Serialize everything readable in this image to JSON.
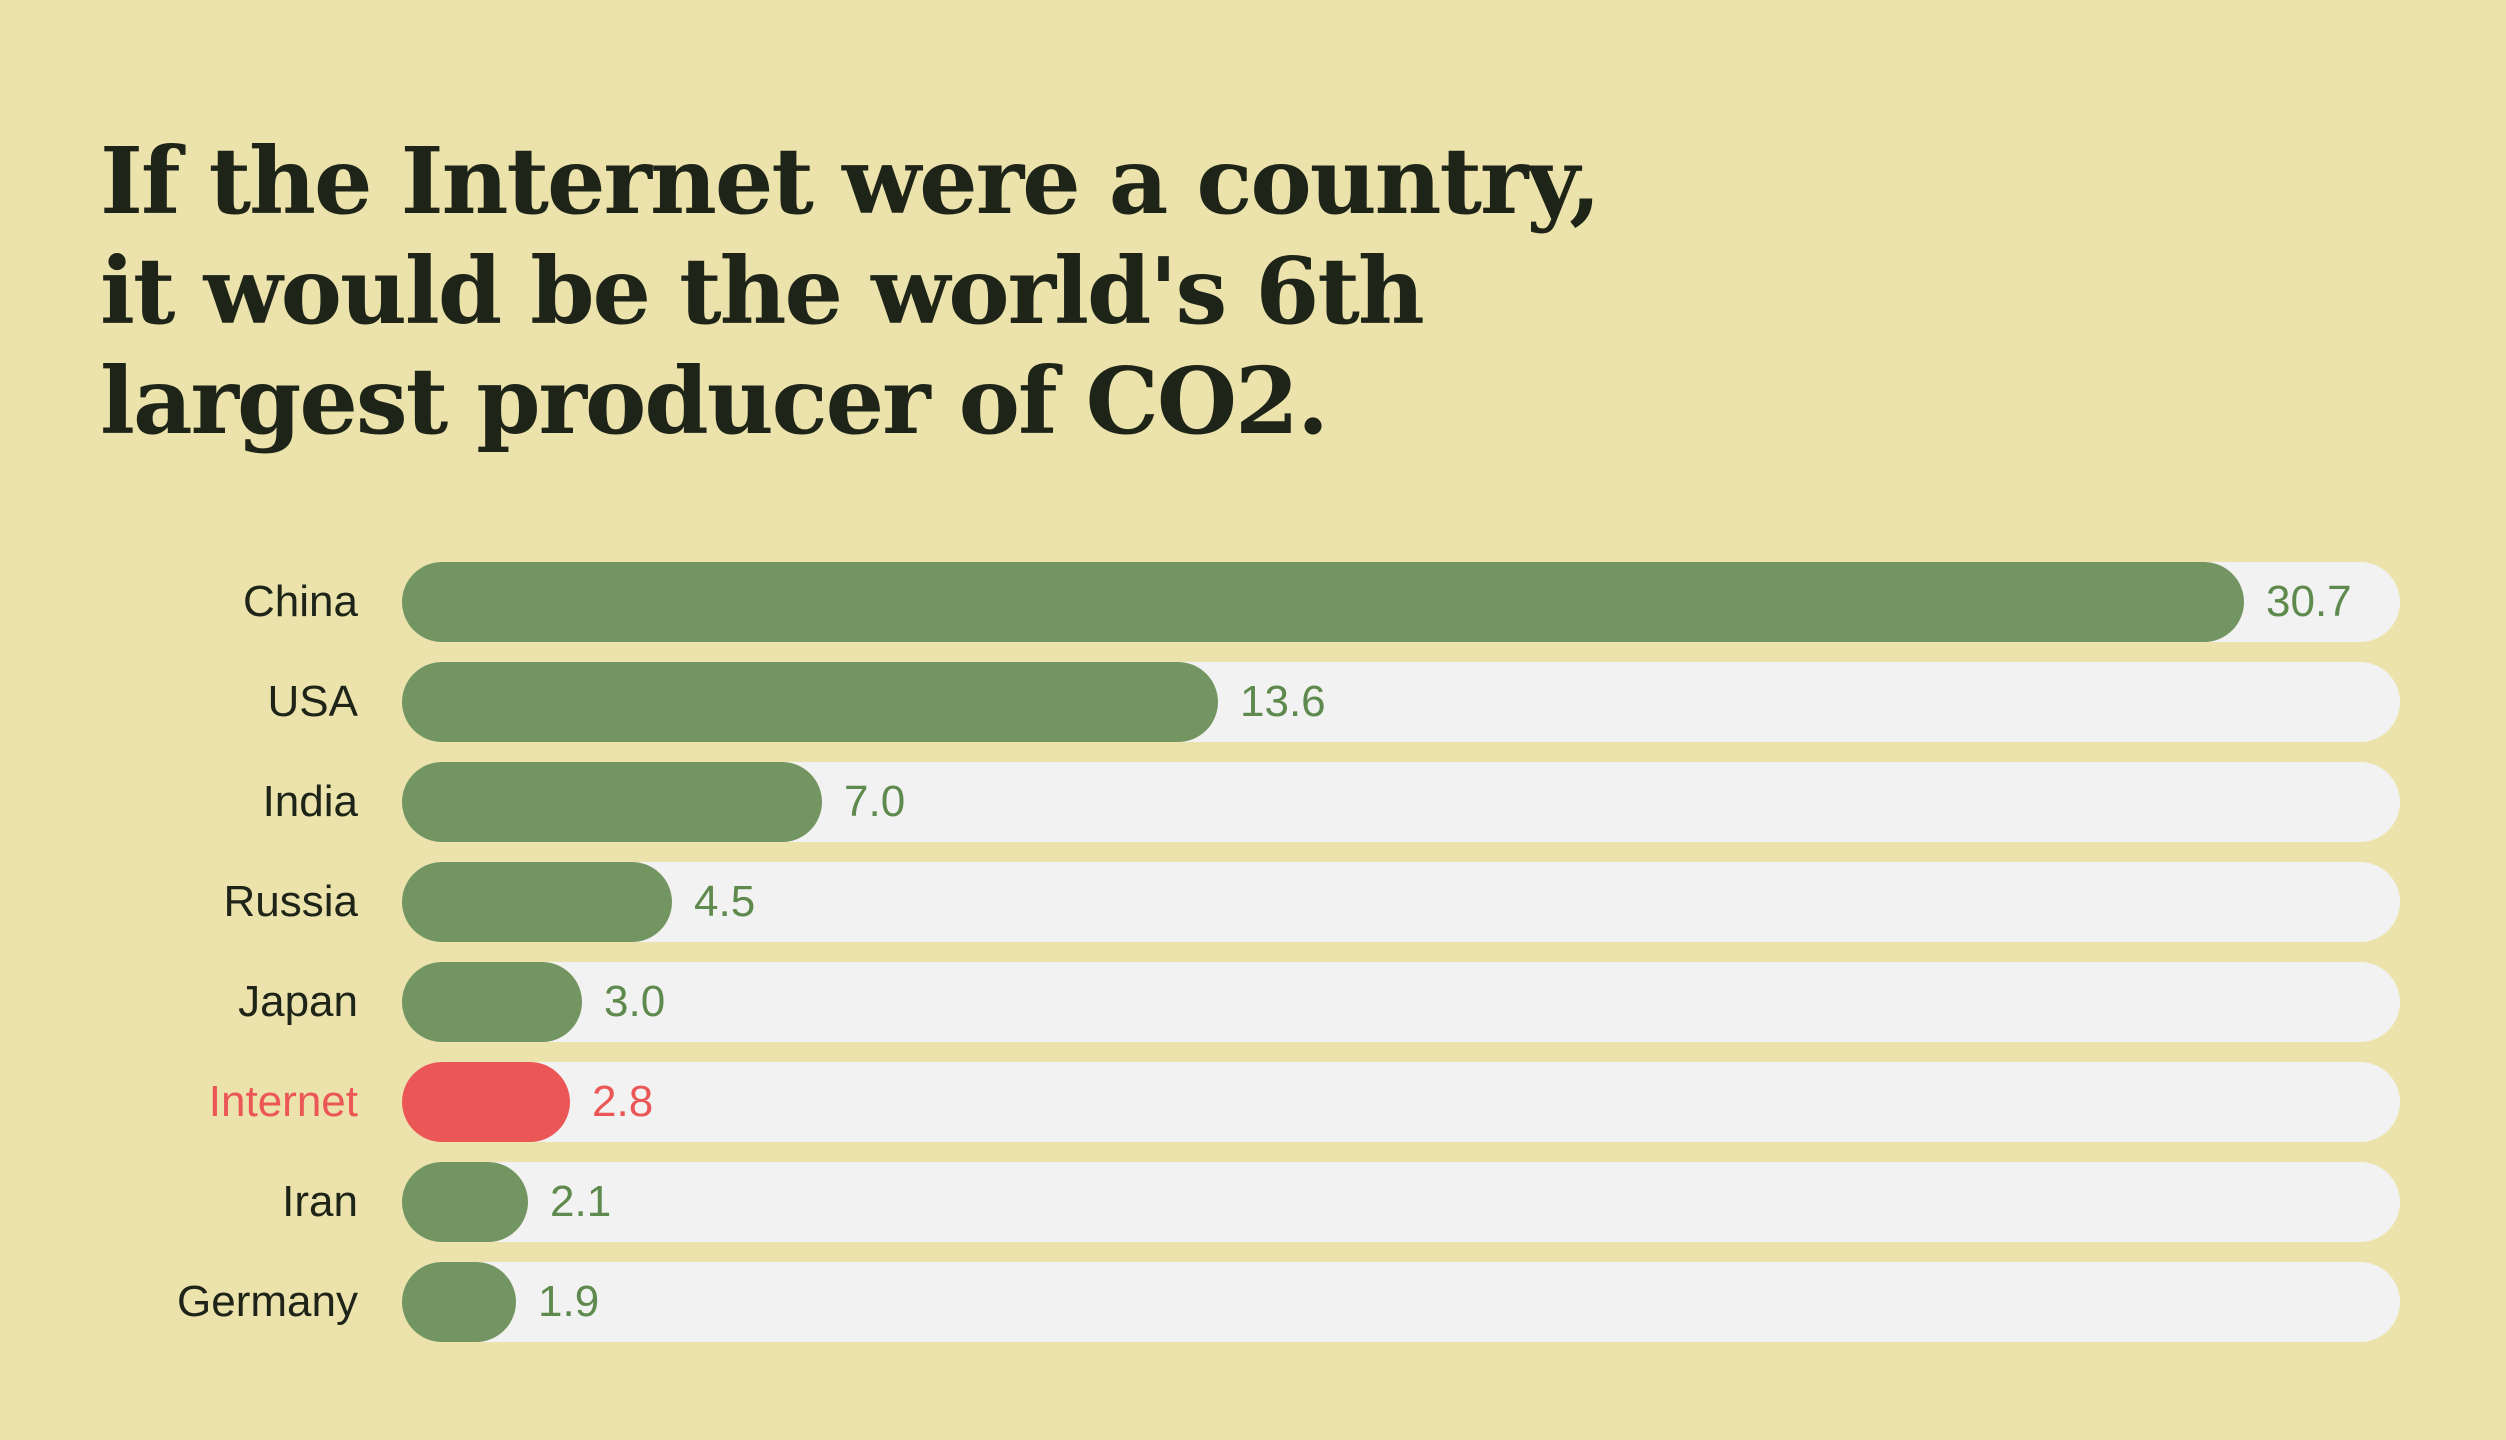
{
  "chart_data": {
    "type": "bar",
    "orientation": "horizontal",
    "title": "If the Internet were a country, it would be the world's 6th largest producer of CO2.",
    "categories": [
      "China",
      "USA",
      "India",
      "Russia",
      "Japan",
      "Internet",
      "Iran",
      "Germany"
    ],
    "values": [
      30.7,
      13.6,
      7.0,
      4.5,
      3.0,
      2.8,
      2.1,
      1.9
    ],
    "value_labels": [
      "30.7",
      "13.6",
      "7.0",
      "4.5",
      "3.0",
      "2.8",
      "2.1",
      "1.9"
    ],
    "highlight": "Internet",
    "xlim": [
      0,
      33
    ],
    "grid": false,
    "legend": "none",
    "colors": {
      "background": "#ebe3ab",
      "bar": "#739562",
      "highlight": "#eb5757",
      "track": "#f2f2f2",
      "label": "#1f2418",
      "value": "#5f8a4e"
    }
  }
}
